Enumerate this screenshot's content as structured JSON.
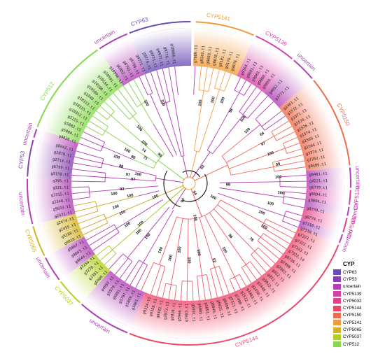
{
  "legend": {
    "title": "CYP",
    "items": [
      {
        "label": "CYP63",
        "color": "#6a4bb5"
      },
      {
        "label": "CYP53",
        "color": "#8a3fb0"
      },
      {
        "label": "uncertain",
        "color": "#b23fb5"
      },
      {
        "label": "CYP5139",
        "color": "#d63fa8"
      },
      {
        "label": "CYP5032",
        "color": "#e83f8c"
      },
      {
        "label": "CYP5144",
        "color": "#f0466a"
      },
      {
        "label": "CYP5150",
        "color": "#f06a4a"
      },
      {
        "label": "CYP5141",
        "color": "#f29a3a"
      },
      {
        "label": "CYP5065",
        "color": "#d4b21f"
      },
      {
        "label": "CYP5037",
        "color": "#b3cf1e"
      },
      {
        "label": "CYP512",
        "color": "#86d94a"
      }
    ]
  },
  "clades": [
    {
      "label": "CYP63",
      "color": "#6a4bb5",
      "start": 338,
      "end": 361
    },
    {
      "label": "CYP5141",
      "color": "#f29a3a",
      "start": 2,
      "end": 24
    },
    {
      "label": "CYP5139",
      "color": "#d63fa8",
      "start": 24,
      "end": 40
    },
    {
      "label": "uncertain",
      "color": "#b23fb5",
      "start": 40,
      "end": 50
    },
    {
      "label": "CYP5150",
      "color": "#f06a4a",
      "start": 50,
      "end": 84
    },
    {
      "label": "uncertain",
      "color": "#b23fb5",
      "start": 84,
      "end": 92
    },
    {
      "label": "CYP5139",
      "color": "#d63fa8",
      "start": 92,
      "end": 98
    },
    {
      "label": "uncertain",
      "color": "#b23fb5",
      "start": 98,
      "end": 102
    },
    {
      "label": "CYP5032",
      "color": "#e83f8c",
      "start": 102,
      "end": 108
    },
    {
      "label": "uncertain",
      "color": "#b23fb5",
      "start": 108,
      "end": 112
    },
    {
      "label": "CYP5144",
      "color": "#f0466a",
      "start": 112,
      "end": 202
    },
    {
      "label": "uncertain",
      "color": "#b23fb5",
      "start": 202,
      "end": 222
    },
    {
      "label": "CYP5037",
      "color": "#b3cf1e",
      "start": 222,
      "end": 233
    },
    {
      "label": "uncertain",
      "color": "#b23fb5",
      "start": 233,
      "end": 243
    },
    {
      "label": "CYP5065",
      "color": "#d4b21f",
      "start": 243,
      "end": 255
    },
    {
      "label": "uncertain",
      "color": "#b23fb5",
      "start": 255,
      "end": 272
    },
    {
      "label": "CYP53",
      "color": "#8a3fb0",
      "start": 272,
      "end": 286
    },
    {
      "label": "uncertain",
      "color": "#b23fb5",
      "start": 286,
      "end": 290
    },
    {
      "label": "CYP512",
      "color": "#86d94a",
      "start": 290,
      "end": 326
    },
    {
      "label": "uncertain",
      "color": "#b23fb5",
      "start": 326,
      "end": 338
    }
  ],
  "outer_labels": [
    {
      "text": "CYP63",
      "color": "#6a4bb5",
      "angle": 343
    },
    {
      "text": "uncertain",
      "color": "#b23fb5",
      "angle": 330
    },
    {
      "text": "CYP512",
      "color": "#86d94a",
      "angle": 303
    },
    {
      "text": "CYP5141",
      "color": "#f29a3a",
      "angle": 10
    },
    {
      "text": "CYP5139",
      "color": "#d63fa8",
      "angle": 31
    },
    {
      "text": "uncertain",
      "color": "#b23fb5",
      "angle": 44
    },
    {
      "text": "CYP5150",
      "color": "#f06a4a",
      "angle": 66
    },
    {
      "text": "uncertain",
      "color": "#b23fb5",
      "angle": 88
    },
    {
      "text": "CYP5139",
      "color": "#d63fa8",
      "angle": 95
    },
    {
      "text": "uncertain",
      "color": "#b23fb5",
      "angle": 100
    },
    {
      "text": "CYP5032",
      "color": "#e83f8c",
      "angle": 105
    },
    {
      "text": "uncertain",
      "color": "#b23fb5",
      "angle": 110
    },
    {
      "text": "CYP5144",
      "color": "#f0466a",
      "angle": 160
    },
    {
      "text": "uncertain",
      "color": "#b23fb5",
      "angle": 212
    },
    {
      "text": "CYP5037",
      "color": "#b3cf1e",
      "angle": 228
    },
    {
      "text": "uncertain",
      "color": "#b23fb5",
      "angle": 240
    },
    {
      "text": "CYP5065",
      "color": "#d4b21f",
      "angle": 250
    },
    {
      "text": "uncertain",
      "color": "#b23fb5",
      "angle": 263
    },
    {
      "text": "CYP53",
      "color": "#8a3fb0",
      "angle": 278
    },
    {
      "text": "uncertain",
      "color": "#b23fb5",
      "angle": 287
    }
  ],
  "tips": [
    {
      "angle": 341,
      "text": "g9776.t1"
    },
    {
      "angle": 344,
      "text": "g9771.t1"
    },
    {
      "angle": 347,
      "text": "g4977.t1"
    },
    {
      "angle": 350,
      "text": "g9776.t1"
    },
    {
      "angle": 353,
      "text": "g10866.t1"
    },
    {
      "angle": 3,
      "text": "g7980.t1"
    },
    {
      "angle": 6,
      "text": "g8143.t1"
    },
    {
      "angle": 9,
      "text": "g9069.t1"
    },
    {
      "angle": 12,
      "text": "g9078.t1"
    },
    {
      "angle": 15,
      "text": "g9181.t1"
    },
    {
      "angle": 18,
      "text": "g9179.t1"
    },
    {
      "angle": 21,
      "text": "g9676.t1"
    },
    {
      "angle": 26,
      "text": "g9164.t1"
    },
    {
      "angle": 29,
      "text": "g9681.t1"
    },
    {
      "angle": 32,
      "text": "g9061.t1"
    },
    {
      "angle": 35,
      "text": "g9060.t1"
    },
    {
      "angle": 38,
      "text": "g9059.t1"
    },
    {
      "angle": 42,
      "text": "g4052.t1"
    },
    {
      "angle": 46,
      "text": "g3771.t1"
    },
    {
      "angle": 52,
      "text": "g2461.t1"
    },
    {
      "angle": 55,
      "text": "g1572.t1"
    },
    {
      "angle": 58,
      "text": "g1571.t1"
    },
    {
      "angle": 61,
      "text": "g1570.t1"
    },
    {
      "angle": 64,
      "text": "g1576.t1"
    },
    {
      "angle": 67,
      "text": "g1574.t1"
    },
    {
      "angle": 70,
      "text": "g1565.t1"
    },
    {
      "angle": 73,
      "text": "g1564.t1"
    },
    {
      "angle": 76,
      "text": "g3374.t1"
    },
    {
      "angle": 79,
      "text": "g7252.t1"
    },
    {
      "angle": 82,
      "text": "g8406.t1"
    },
    {
      "angle": 86,
      "text": "g8401.t1"
    },
    {
      "angle": 89,
      "text": "g4221.t1"
    },
    {
      "angle": 92,
      "text": "g6779.t1"
    },
    {
      "angle": 95,
      "text": "g6694.t1"
    },
    {
      "angle": 98,
      "text": "g9894.t1"
    },
    {
      "angle": 102,
      "text": "g8759.t1"
    },
    {
      "angle": 106,
      "text": "g8774.t1"
    },
    {
      "angle": 109,
      "text": "g7318.t1"
    },
    {
      "angle": 112,
      "text": "g7318.t1"
    },
    {
      "angle": 115,
      "text": "g7323.t1"
    },
    {
      "angle": 118,
      "text": "g7322.t1"
    },
    {
      "angle": 121,
      "text": "g7323.t2"
    },
    {
      "angle": 124,
      "text": "g7323.t4"
    },
    {
      "angle": 127,
      "text": "g8736.t1"
    },
    {
      "angle": 130,
      "text": "g2498.t1"
    },
    {
      "angle": 133,
      "text": "g2563.t1"
    },
    {
      "angle": 136,
      "text": "g912.t1"
    },
    {
      "angle": 139,
      "text": "g911.t1"
    },
    {
      "angle": 142,
      "text": "g3012.t1"
    },
    {
      "angle": 145,
      "text": "g1448.t1"
    },
    {
      "angle": 148,
      "text": "g1450.t1"
    },
    {
      "angle": 151,
      "text": "g1483.t1"
    },
    {
      "angle": 154,
      "text": "g1512.t1"
    },
    {
      "angle": 157,
      "text": "g7480.t1"
    },
    {
      "angle": 160,
      "text": "g7321.t1"
    },
    {
      "angle": 163,
      "text": "g6090.t1"
    },
    {
      "angle": 166,
      "text": "g6025.t1"
    },
    {
      "angle": 169,
      "text": "g8846.t1"
    },
    {
      "angle": 172,
      "text": "g5891.t1"
    },
    {
      "angle": 175,
      "text": "g6085.t1"
    },
    {
      "angle": 178,
      "text": "g5931.t1"
    },
    {
      "angle": 181,
      "text": "g7493.t1"
    },
    {
      "angle": 184,
      "text": "g5966.t1"
    },
    {
      "angle": 187,
      "text": "g2016.t1"
    },
    {
      "angle": 190,
      "text": "g2073.t1"
    },
    {
      "angle": 193,
      "text": "g9383.t1"
    },
    {
      "angle": 196,
      "text": "g9358.t1"
    },
    {
      "angle": 199,
      "text": "g9334.t1"
    },
    {
      "angle": 204,
      "text": "g1861.t1"
    },
    {
      "angle": 207,
      "text": "g1869.t1"
    },
    {
      "angle": 210,
      "text": "g5797.t1"
    },
    {
      "angle": 213,
      "text": "g6891.t1"
    },
    {
      "angle": 216,
      "text": "g5979.t1"
    },
    {
      "angle": 219,
      "text": "g4893.t1"
    },
    {
      "angle": 223,
      "text": "g6000.t1"
    },
    {
      "angle": 226,
      "text": "g2391.t1"
    },
    {
      "angle": 229,
      "text": "g3276.t1"
    },
    {
      "angle": 232,
      "text": "g3256.t1"
    },
    {
      "angle": 235,
      "text": "g8644.t1"
    },
    {
      "angle": 238,
      "text": "g9043.t1"
    },
    {
      "angle": 241,
      "text": "g9867.t1"
    },
    {
      "angle": 244,
      "text": "g9910.t1"
    },
    {
      "angle": 247,
      "text": "g5280.t1"
    },
    {
      "angle": 250,
      "text": "g2455.t1"
    },
    {
      "angle": 253,
      "text": "g2474.t1"
    },
    {
      "angle": 256,
      "text": "g2472.t1"
    },
    {
      "angle": 259,
      "text": "g9833.t1"
    },
    {
      "angle": 262,
      "text": "g2340.t1"
    },
    {
      "angle": 265,
      "text": "g3315.t1"
    },
    {
      "angle": 268,
      "text": "g321.t1"
    },
    {
      "angle": 271,
      "text": "g395.t1"
    },
    {
      "angle": 274,
      "text": "g5150.t1"
    },
    {
      "angle": 277,
      "text": "g6799.t1"
    },
    {
      "angle": 280,
      "text": "g2714.t1"
    },
    {
      "angle": 283,
      "text": "g2879.t1"
    },
    {
      "angle": 286,
      "text": "g8442.t1"
    },
    {
      "angle": 290,
      "text": "g4838.t1"
    },
    {
      "angle": 293,
      "text": "g5084.t1"
    },
    {
      "angle": 296,
      "text": "g5082.t1"
    },
    {
      "angle": 299,
      "text": "g5125.t1"
    },
    {
      "angle": 302,
      "text": "g10312.t1"
    },
    {
      "angle": 305,
      "text": "g10315.t1"
    },
    {
      "angle": 308,
      "text": "g10313.t1"
    },
    {
      "angle": 311,
      "text": "g1049.t1"
    },
    {
      "angle": 314,
      "text": "g10589.t1"
    },
    {
      "angle": 317,
      "text": "g10596.t1"
    },
    {
      "angle": 320,
      "text": "g10554.t1"
    },
    {
      "angle": 323,
      "text": "g10591.t1"
    },
    {
      "angle": 326,
      "text": "g10556.t1"
    },
    {
      "angle": 329,
      "text": "g6802.t1"
    },
    {
      "angle": 332,
      "text": "g6792.t1"
    },
    {
      "angle": 335,
      "text": "g6796.t1"
    },
    {
      "angle": 338,
      "text": "g4771.t1"
    }
  ],
  "bootstrap": [
    {
      "angle": 342,
      "r": 121,
      "text": "100"
    },
    {
      "angle": 332,
      "r": 130,
      "text": "100"
    },
    {
      "angle": 318,
      "r": 106,
      "text": "100"
    },
    {
      "angle": 312,
      "r": 86,
      "text": "100"
    },
    {
      "angle": 306,
      "r": 80,
      "text": "74"
    },
    {
      "angle": 300,
      "r": 72,
      "text": "71"
    },
    {
      "angle": 295,
      "r": 88,
      "text": "80"
    },
    {
      "angle": 298,
      "r": 100,
      "text": "100"
    },
    {
      "angle": 290,
      "r": 110,
      "text": "100"
    },
    {
      "angle": 314,
      "r": 58,
      "text": "96"
    },
    {
      "angle": 284,
      "r": 100,
      "text": "88"
    },
    {
      "angle": 278,
      "r": 88,
      "text": "97"
    },
    {
      "angle": 274,
      "r": 80,
      "text": "97"
    },
    {
      "angle": 280,
      "r": 74,
      "text": "100"
    },
    {
      "angle": 265,
      "r": 96,
      "text": "93"
    },
    {
      "angle": 262,
      "r": 108,
      "text": "100"
    },
    {
      "angle": 258,
      "r": 86,
      "text": "100"
    },
    {
      "angle": 252,
      "r": 110,
      "text": "100"
    },
    {
      "angle": 246,
      "r": 104,
      "text": "100"
    },
    {
      "angle": 236,
      "r": 106,
      "text": "100"
    },
    {
      "angle": 230,
      "r": 90,
      "text": "100"
    },
    {
      "angle": 226,
      "r": 100,
      "text": "100"
    },
    {
      "angle": 218,
      "r": 96,
      "text": "100"
    },
    {
      "angle": 203,
      "r": 104,
      "text": "100"
    },
    {
      "angle": 194,
      "r": 110,
      "text": "100"
    },
    {
      "angle": 188,
      "r": 96,
      "text": "100"
    },
    {
      "angle": 180,
      "r": 110,
      "text": "100"
    },
    {
      "angle": 172,
      "r": 100,
      "text": "100"
    },
    {
      "angle": 162,
      "r": 116,
      "text": "52"
    },
    {
      "angle": 152,
      "r": 108,
      "text": "100"
    },
    {
      "angle": 142,
      "r": 96,
      "text": "96"
    },
    {
      "angle": 132,
      "r": 120,
      "text": "78"
    },
    {
      "angle": 120,
      "r": 124,
      "text": "100"
    },
    {
      "angle": 112,
      "r": 112,
      "text": "100"
    },
    {
      "angle": 104,
      "r": 120,
      "text": "100"
    },
    {
      "angle": 96,
      "r": 132,
      "text": "100"
    },
    {
      "angle": 86,
      "r": 128,
      "text": "100"
    },
    {
      "angle": 78,
      "r": 130,
      "text": "99"
    },
    {
      "angle": 70,
      "r": 124,
      "text": "100"
    },
    {
      "angle": 62,
      "r": 120,
      "text": "97"
    },
    {
      "angle": 56,
      "r": 126,
      "text": "66"
    },
    {
      "angle": 48,
      "r": 112,
      "text": "100"
    },
    {
      "angle": 40,
      "r": 120,
      "text": "100"
    },
    {
      "angle": 30,
      "r": 120,
      "text": "96"
    },
    {
      "angle": 22,
      "r": 128,
      "text": "100"
    },
    {
      "angle": 16,
      "r": 124,
      "text": "100"
    },
    {
      "angle": 8,
      "r": 116,
      "text": "100"
    },
    {
      "angle": 92,
      "r": 56,
      "text": "98"
    },
    {
      "angle": 120,
      "r": 40,
      "text": "100"
    },
    {
      "angle": 170,
      "r": 50,
      "text": "100"
    },
    {
      "angle": 248,
      "r": 52,
      "text": "100"
    },
    {
      "angle": 200,
      "r": 26,
      "text": "94"
    },
    {
      "angle": 150,
      "r": 16,
      "text": "94"
    },
    {
      "angle": 40,
      "r": 30,
      "text": "93"
    }
  ]
}
